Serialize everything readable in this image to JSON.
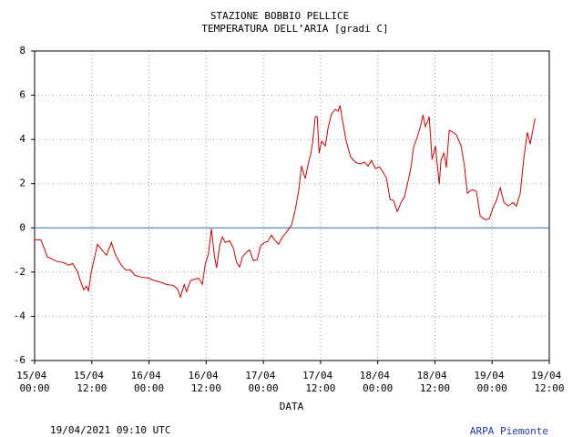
{
  "chart_data": {
    "type": "line",
    "title": "STAZIONE BOBBIO PELLICE",
    "subtitle": "TEMPERATURA DELL’ARIA [gradi C]",
    "x_label": "DATA",
    "footer_left": "19/04/2021 09:10 UTC",
    "footer_right": "ARPA Piemonte",
    "xlim": [
      0,
      108
    ],
    "xticks": [
      {
        "value": 0,
        "label": "15/04 00:00"
      },
      {
        "value": 12,
        "label": "15/04 12:00"
      },
      {
        "value": 24,
        "label": "16/04 00:00"
      },
      {
        "value": 36,
        "label": "16/04 12:00"
      },
      {
        "value": 48,
        "label": "17/04 00:00"
      },
      {
        "value": 60,
        "label": "17/04 12:00"
      },
      {
        "value": 72,
        "label": "18/04 00:00"
      },
      {
        "value": 84,
        "label": "18/04 12:00"
      },
      {
        "value": 96,
        "label": "19/04 00:00"
      },
      {
        "value": 108,
        "label": "19/04 12:00"
      }
    ],
    "ylim": [
      -6,
      8
    ],
    "yticks": [
      -6,
      -4,
      -2,
      0,
      2,
      4,
      6,
      8
    ],
    "grid": true,
    "zero_line_color": "#2f74c0",
    "x": [
      0,
      1.3,
      2.7,
      3.6,
      4.8,
      6.1,
      7.1,
      8.0,
      9.0,
      9.6,
      10.3,
      10.9,
      11.3,
      11.9,
      13.2,
      14.1,
      15.1,
      16.1,
      17.0,
      18.2,
      19.1,
      20.1,
      21.0,
      22.4,
      23.9,
      25.2,
      26.6,
      27.7,
      29.1,
      30.0,
      30.6,
      31.4,
      31.9,
      32.7,
      33.8,
      34.4,
      35.2,
      35.8,
      36.5,
      37.1,
      37.7,
      38.2,
      38.8,
      39.4,
      40.0,
      40.9,
      41.7,
      42.4,
      43.0,
      43.6,
      44.4,
      45.1,
      45.9,
      46.7,
      47.4,
      48.2,
      48.9,
      49.7,
      50.5,
      51.2,
      52.0,
      52.8,
      53.9,
      54.7,
      55.4,
      56.0,
      56.8,
      57.4,
      57.9,
      58.3,
      58.9,
      59.3,
      59.7,
      60.2,
      61.0,
      61.6,
      62.3,
      63.1,
      63.7,
      64.1,
      64.6,
      65.4,
      66.3,
      67.3,
      68.3,
      69.2,
      70.0,
      70.7,
      71.5,
      72.3,
      73.0,
      73.8,
      74.6,
      75.3,
      76.1,
      76.9,
      77.6,
      78.4,
      79.0,
      79.5,
      80.3,
      80.9,
      81.5,
      82.0,
      82.8,
      83.4,
      84.1,
      84.9,
      85.3,
      85.9,
      86.4,
      87.0,
      87.8,
      88.5,
      89.5,
      90.2,
      90.8,
      91.8,
      92.7,
      93.5,
      94.5,
      95.4,
      96.2,
      96.9,
      97.7,
      98.5,
      99.4,
      100.4,
      101.1,
      101.9,
      102.7,
      103.4,
      104.0,
      105.0
    ],
    "series": [
      {
        "name": "Temperatura",
        "color": "#cc0000",
        "values": [
          -0.54,
          -0.54,
          -1.32,
          -1.4,
          -1.53,
          -1.57,
          -1.69,
          -1.61,
          -1.98,
          -2.39,
          -2.8,
          -2.64,
          -2.85,
          -1.98,
          -0.74,
          -0.99,
          -1.24,
          -0.66,
          -1.24,
          -1.69,
          -1.9,
          -1.9,
          -2.14,
          -2.23,
          -2.27,
          -2.39,
          -2.47,
          -2.56,
          -2.6,
          -2.76,
          -3.13,
          -2.56,
          -2.89,
          -2.39,
          -2.31,
          -2.27,
          -2.56,
          -1.65,
          -1.15,
          -0.04,
          -1.24,
          -1.81,
          -0.82,
          -0.41,
          -0.66,
          -0.58,
          -0.91,
          -1.57,
          -1.77,
          -1.32,
          -1.11,
          -0.99,
          -1.48,
          -1.44,
          -0.82,
          -0.66,
          -0.62,
          -0.33,
          -0.58,
          -0.74,
          -0.41,
          -0.21,
          0.12,
          0.82,
          1.65,
          2.8,
          2.23,
          2.89,
          3.3,
          3.79,
          5.03,
          5.03,
          3.38,
          3.92,
          3.71,
          4.54,
          5.15,
          5.36,
          5.28,
          5.53,
          4.87,
          3.92,
          3.22,
          2.97,
          2.89,
          2.97,
          2.8,
          3.05,
          2.68,
          2.76,
          2.56,
          2.27,
          1.28,
          1.24,
          0.74,
          1.15,
          1.4,
          2.14,
          2.76,
          3.63,
          4.12,
          4.54,
          5.11,
          4.58,
          5.03,
          3.09,
          3.71,
          1.98,
          3.09,
          3.38,
          2.72,
          4.41,
          4.33,
          4.21,
          3.71,
          2.8,
          1.57,
          1.73,
          1.65,
          0.54,
          0.37,
          0.41,
          0.91,
          1.24,
          1.81,
          1.15,
          0.99,
          1.15,
          0.99,
          1.57,
          3.22,
          4.33,
          3.79,
          4.95
        ]
      }
    ]
  }
}
